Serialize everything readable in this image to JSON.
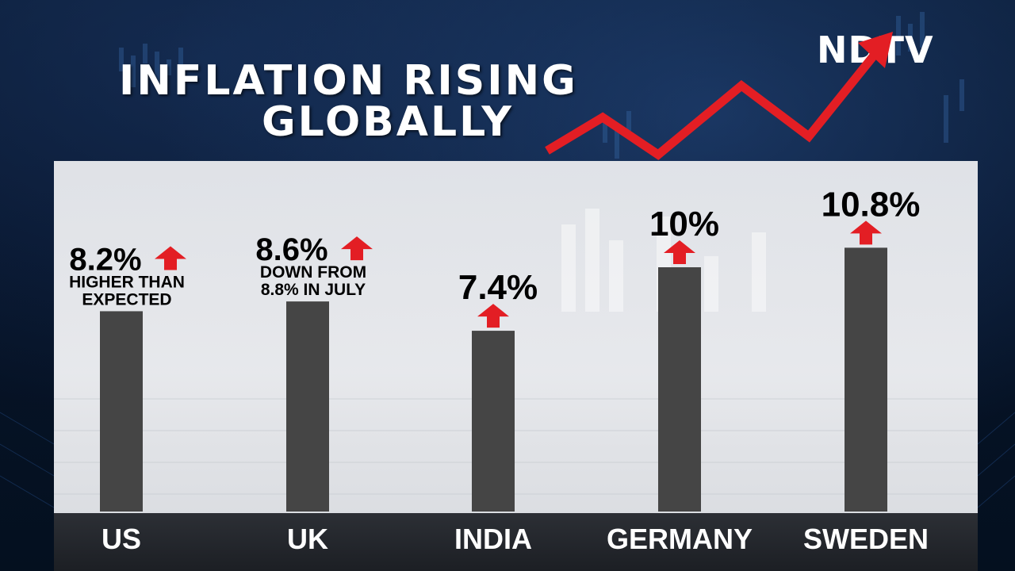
{
  "brand": {
    "logo_text": "NDTV",
    "accent_color": "#e31e24"
  },
  "title": {
    "line1": "INFLATION RISING",
    "line2": "GLOBALLY"
  },
  "chart_data": {
    "type": "bar",
    "categories": [
      "US",
      "UK",
      "INDIA",
      "GERMANY",
      "SWEDEN"
    ],
    "values": [
      8.2,
      8.6,
      7.4,
      10.0,
      10.8
    ],
    "value_labels": [
      "8.2%",
      "8.6%",
      "7.4%",
      "10%",
      "10.8%"
    ],
    "annotations": [
      [
        "HIGHER THAN",
        "EXPECTED"
      ],
      [
        "DOWN FROM",
        "8.8% IN JULY"
      ],
      [],
      [],
      []
    ],
    "direction": [
      "up",
      "up",
      "up",
      "up",
      "up"
    ],
    "bar_color": "#454545",
    "arrow_color": "#e31e24",
    "title": "INFLATION RISING GLOBALLY",
    "xlabel": "",
    "ylabel": "",
    "grid": false,
    "legend": "none"
  }
}
